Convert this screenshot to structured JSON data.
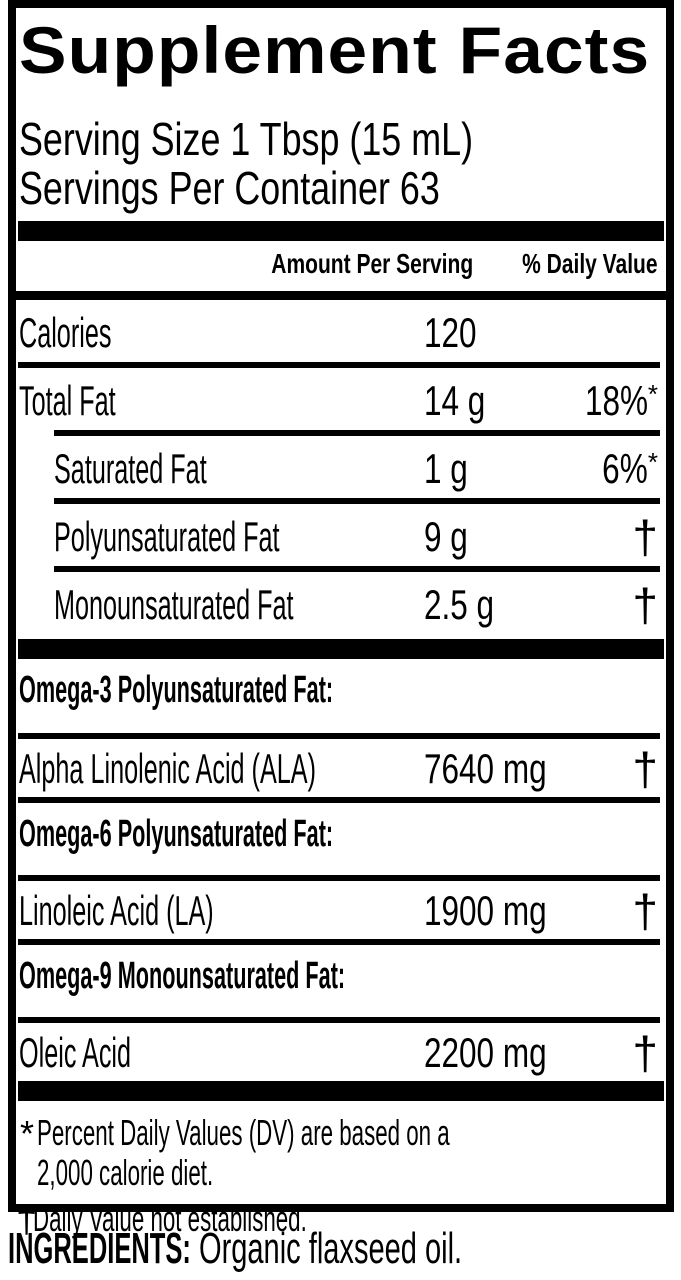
{
  "label": {
    "title": "Supplement Facts",
    "serving_size": "Serving Size 1 Tbsp (15 mL)",
    "servings_per_container": "Servings Per Container 63",
    "columns": {
      "amount": "Amount Per Serving",
      "dv": "% Daily Value"
    },
    "main_rows": [
      {
        "name": "Calories",
        "amount": "120",
        "dv": ""
      },
      {
        "name": "Total Fat",
        "amount": "14 g",
        "dv": "18%",
        "dv_mark": "*"
      },
      {
        "name": "Saturated Fat",
        "amount": "1 g",
        "dv": "6%",
        "dv_mark": "*"
      },
      {
        "name": "Polyunsaturated Fat",
        "amount": "9 g",
        "dv": "†"
      },
      {
        "name": "Monounsaturated Fat",
        "amount": "2.5 g",
        "dv": "†"
      }
    ],
    "sections": [
      {
        "heading": "Omega-3 Polyunsaturated Fat:",
        "row": {
          "name": "Alpha Linolenic Acid (ALA)",
          "amount": "7640 mg",
          "dv": "†"
        }
      },
      {
        "heading": "Omega-6 Polyunsaturated Fat:",
        "row": {
          "name": "Linoleic Acid (LA)",
          "amount": "1900 mg",
          "dv": "†"
        }
      },
      {
        "heading": "Omega-9 Monounsaturated Fat:",
        "row": {
          "name": "Oleic Acid",
          "amount": "2200 mg",
          "dv": "†"
        }
      }
    ],
    "footnotes": [
      {
        "symbol": "*",
        "lines": [
          "Percent Daily Values (DV) are based on a",
          "2,000 calorie diet."
        ]
      },
      {
        "symbol": "†",
        "lines": [
          "Daily Value not established."
        ]
      }
    ],
    "ingredients_label": "INGREDIENTS:",
    "ingredients_value": "Organic flaxseed oil."
  },
  "colors": {
    "ink": "#000000",
    "paper": "#ffffff"
  }
}
